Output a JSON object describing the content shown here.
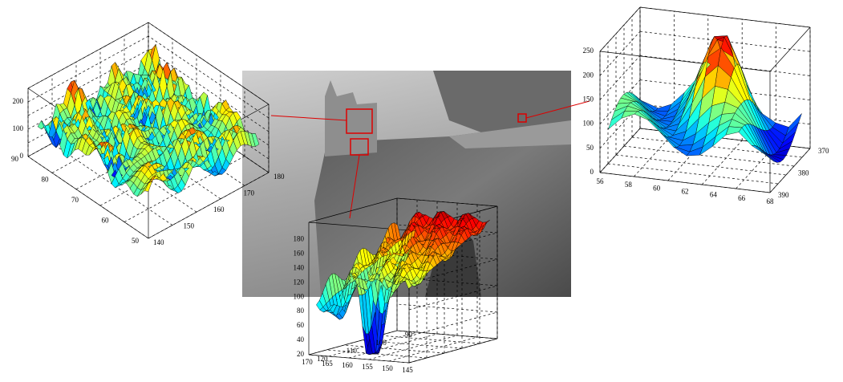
{
  "figure": {
    "plots": [
      {
        "x_ticks": [
          140,
          150,
          160,
          170,
          180
        ],
        "y_ticks": [
          50,
          60,
          70,
          80,
          90
        ],
        "z_ticks": [
          0,
          100,
          200
        ]
      },
      {
        "x_ticks": [
          145,
          150,
          155,
          160,
          165,
          170
        ],
        "y_ticks": [
          90,
          100,
          110,
          120
        ],
        "z_ticks": [
          20,
          40,
          60,
          80,
          100,
          120,
          140,
          160,
          180
        ]
      },
      {
        "x_ticks": [
          56,
          58,
          60,
          62,
          64,
          66,
          68
        ],
        "y_ticks": [
          370,
          380,
          390
        ],
        "z_ticks": [
          0,
          50,
          100,
          150,
          200,
          250
        ]
      }
    ]
  }
}
